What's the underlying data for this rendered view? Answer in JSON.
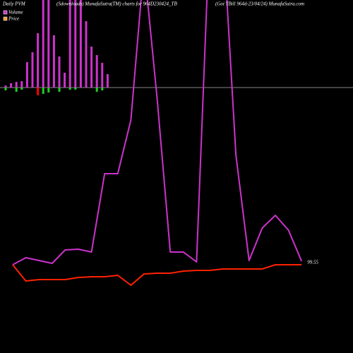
{
  "chart_data": {
    "type": "combo",
    "label": "Daily PVM",
    "title": "(Sdownloads) MunafaSutra(TM) charts for 964D230424_TB",
    "subtitle": "(Goi TBill 964d-23/04/24) MunafaSutra.com",
    "end_label": "99.55",
    "bar_ylim": [
      -376,
      124
    ],
    "bars_up": {
      "color": "#cc33cc",
      "values": [
        3,
        6,
        8,
        9,
        36,
        50,
        77,
        160,
        160,
        74,
        44,
        21,
        160,
        160,
        160,
        94,
        58,
        46,
        35,
        19
      ]
    },
    "bars_down": {
      "colors": [
        "#22cc22",
        "#22cc22",
        "#22cc22",
        "#22cc22",
        "#22cc22",
        "#22cc22",
        "#ff0000",
        "#22cc22",
        "#22cc22",
        "#22cc22",
        "#22cc22",
        "#22cc22",
        "#22cc22",
        "#22cc22",
        "#22cc22",
        "#22cc22",
        "#22cc22",
        "#22cc22",
        "#22cc22",
        "#22cc22"
      ],
      "values": [
        -4,
        0,
        -6,
        -3,
        0,
        0,
        -11,
        -9,
        -7,
        0,
        -6,
        0,
        -3,
        -3,
        0,
        0,
        0,
        -6,
        -4,
        0
      ]
    },
    "ylim": [
      0,
      500
    ],
    "series": [
      {
        "name": "Volume",
        "color": "#cc33cc",
        "values": [
          125,
          135,
          131,
          127,
          146,
          147,
          143,
          254,
          254,
          330,
          550,
          360,
          143,
          143,
          129,
          600,
          600,
          280,
          131,
          177,
          195,
          174,
          130
        ]
      },
      {
        "name": "Price",
        "color": "#ff2200",
        "legend_color": "#ff9933",
        "values": [
          125,
          102,
          104,
          104,
          104,
          107,
          108,
          108,
          110,
          96,
          112,
          113,
          113,
          116,
          117,
          117,
          119,
          119,
          119,
          119,
          125,
          125,
          125
        ]
      }
    ]
  }
}
